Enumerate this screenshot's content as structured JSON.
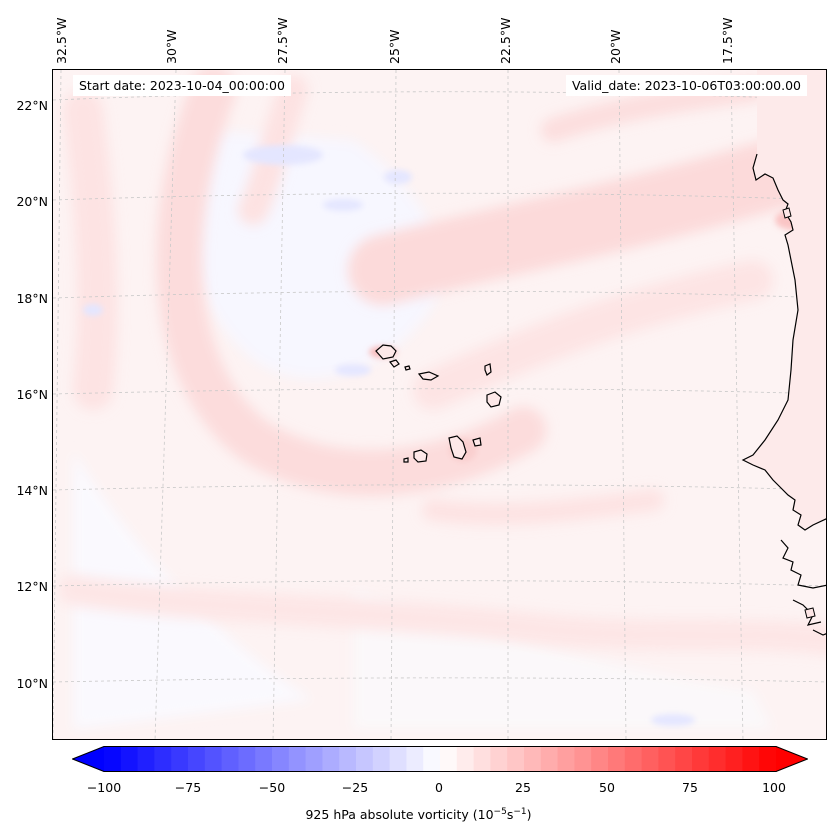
{
  "map": {
    "title_left": "Start date: 2023-10-04_00:00:00",
    "title_right": "Valid_date: 2023-10-06T03:00:00.00",
    "lat_labels": [
      "22°N",
      "20°N",
      "18°N",
      "16°N",
      "14°N",
      "12°N",
      "10°N"
    ],
    "lon_labels": [
      "32.5°W",
      "30°W",
      "27.5°W",
      "25°W",
      "22.5°W",
      "20°W",
      "17.5°W"
    ],
    "field": "925 hPa absolute vorticity",
    "region": "Cabo Verde / West African coast"
  },
  "colorbar": {
    "ticks": [
      "−100",
      "−75",
      "−50",
      "−25",
      "0",
      "25",
      "50",
      "75",
      "100"
    ],
    "label_prefix": "925 hPa absolute vorticity (10",
    "label_exp1": "−5",
    "label_mid": "s",
    "label_exp2": "−1",
    "label_suffix": ")",
    "min_color": "#0000ff",
    "mid_color": "#ffffff",
    "max_color": "#ff0000"
  }
}
